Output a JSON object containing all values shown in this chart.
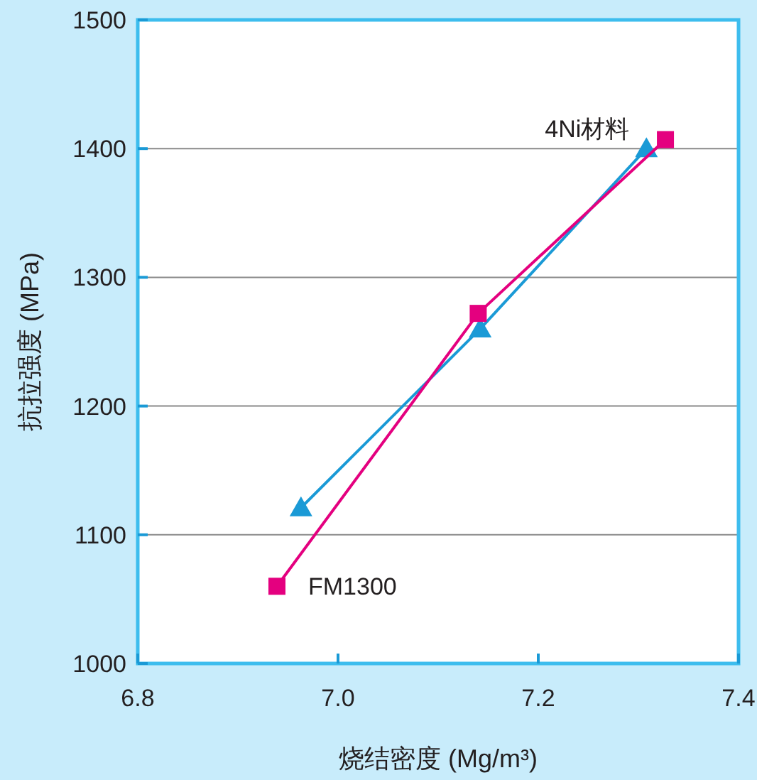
{
  "chart_data": {
    "type": "line",
    "xlabel": "烧结密度 (Mg/m³)",
    "ylabel": "抗拉强度 (MPa)",
    "xlim": [
      6.8,
      7.4
    ],
    "xticks": [
      {
        "value": 6.8,
        "label": "6.8"
      },
      {
        "value": 7.0,
        "label": "7.0"
      },
      {
        "value": 7.2,
        "label": "7.2"
      },
      {
        "value": 7.4,
        "label": "7.4"
      }
    ],
    "ylim": [
      1000,
      1500
    ],
    "yticks": [
      1000,
      1100,
      1200,
      1300,
      1400,
      1500
    ],
    "grid": "y",
    "series": [
      {
        "color": "#1a9ad6",
        "marker": "triangle",
        "x": [
          6.963,
          7.142,
          7.308
        ],
        "values": [
          1121,
          1260,
          1400
        ]
      },
      {
        "color": "#e4007f",
        "marker": "square",
        "x": [
          6.939,
          7.14,
          7.327
        ],
        "values": [
          1060,
          1272,
          1407
        ]
      }
    ],
    "annotations": [
      {
        "text": "4Ni材料",
        "x": 7.308,
        "y": 1400
      },
      {
        "text": "FM1300",
        "x": 6.939,
        "y": 1060
      }
    ]
  }
}
